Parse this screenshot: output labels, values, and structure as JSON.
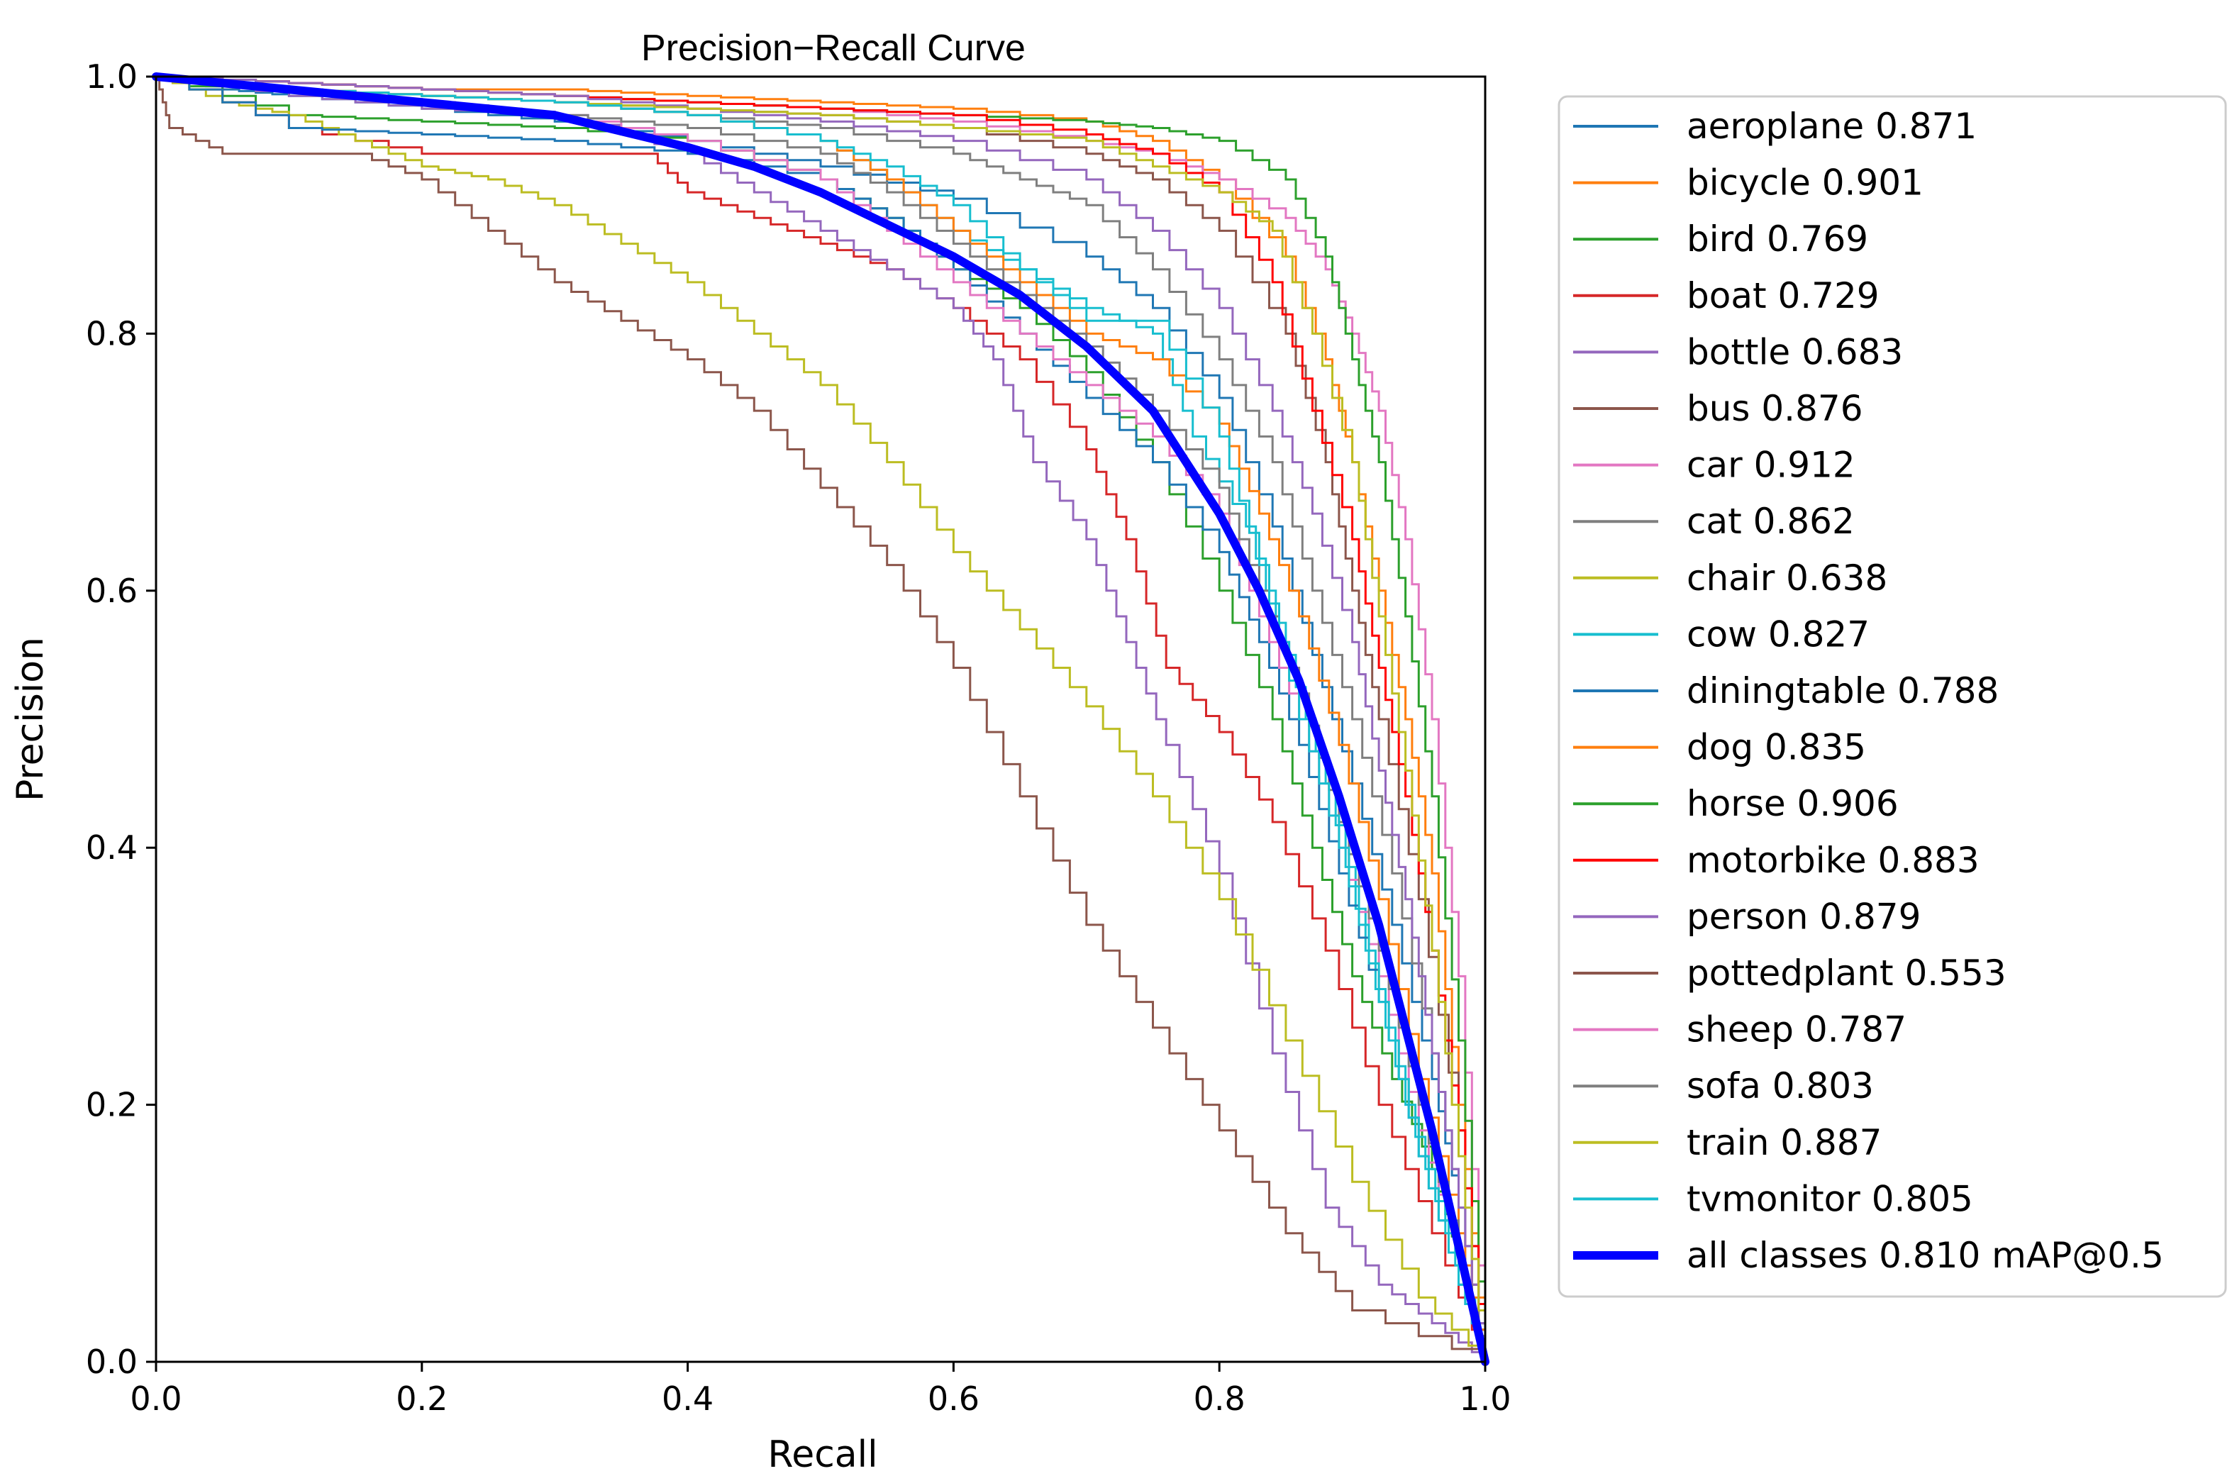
{
  "chart_data": {
    "type": "line",
    "title": "Precision−Recall Curve",
    "xlabel": "Recall",
    "ylabel": "Precision",
    "xlim": [
      0,
      1
    ],
    "ylim": [
      0,
      1
    ],
    "xticks": [
      "0.0",
      "0.2",
      "0.4",
      "0.6",
      "0.8",
      "1.0"
    ],
    "yticks": [
      "0.0",
      "0.2",
      "0.4",
      "0.6",
      "0.8",
      "1.0"
    ],
    "grid": false,
    "legend_position": "outside-right",
    "series": [
      {
        "name": "aeroplane",
        "legend": "aeroplane 0.871",
        "color": "#1f77b4",
        "x": [
          0,
          0.05,
          0.1,
          0.2,
          0.3,
          0.4,
          0.5,
          0.6,
          0.7,
          0.75,
          0.8,
          0.84,
          0.87,
          0.9,
          0.93,
          0.96,
          0.98,
          1.0
        ],
        "y": [
          1,
          0.99,
          0.985,
          0.975,
          0.965,
          0.95,
          0.93,
          0.905,
          0.86,
          0.82,
          0.75,
          0.65,
          0.55,
          0.45,
          0.34,
          0.22,
          0.12,
          0
        ]
      },
      {
        "name": "bicycle",
        "legend": "bicycle 0.901",
        "color": "#ff7f0e",
        "x": [
          0,
          0.1,
          0.2,
          0.3,
          0.4,
          0.5,
          0.6,
          0.7,
          0.75,
          0.8,
          0.85,
          0.88,
          0.9,
          0.92,
          0.94,
          0.96,
          0.98,
          1.0
        ],
        "y": [
          1,
          0.995,
          0.99,
          0.99,
          0.985,
          0.98,
          0.975,
          0.965,
          0.95,
          0.92,
          0.86,
          0.78,
          0.7,
          0.6,
          0.5,
          0.38,
          0.2,
          0
        ]
      },
      {
        "name": "bird",
        "legend": "bird 0.769",
        "color": "#2ca02c",
        "x": [
          0,
          0.1,
          0.2,
          0.3,
          0.4,
          0.5,
          0.55,
          0.6,
          0.65,
          0.7,
          0.75,
          0.8,
          0.84,
          0.87,
          0.9,
          0.93,
          0.96,
          0.98,
          1.0
        ],
        "y": [
          1,
          0.97,
          0.965,
          0.96,
          0.95,
          0.92,
          0.89,
          0.85,
          0.82,
          0.77,
          0.7,
          0.6,
          0.5,
          0.4,
          0.3,
          0.22,
          0.15,
          0.08,
          0
        ]
      },
      {
        "name": "boat",
        "legend": "boat 0.729",
        "color": "#d62728",
        "x": [
          0,
          0.1,
          0.2,
          0.3,
          0.37,
          0.4,
          0.45,
          0.5,
          0.55,
          0.6,
          0.65,
          0.7,
          0.73,
          0.76,
          0.8,
          0.84,
          0.88,
          0.92,
          0.96,
          1.0
        ],
        "y": [
          1,
          0.96,
          0.94,
          0.94,
          0.94,
          0.91,
          0.89,
          0.87,
          0.85,
          0.82,
          0.78,
          0.71,
          0.64,
          0.54,
          0.49,
          0.42,
          0.32,
          0.2,
          0.1,
          0
        ]
      },
      {
        "name": "bottle",
        "legend": "bottle 0.683",
        "color": "#9467bd",
        "x": [
          0,
          0.1,
          0.2,
          0.3,
          0.4,
          0.45,
          0.5,
          0.55,
          0.6,
          0.63,
          0.66,
          0.7,
          0.73,
          0.76,
          0.8,
          0.84,
          0.88,
          0.92,
          0.96,
          1.0
        ],
        "y": [
          1,
          0.985,
          0.975,
          0.97,
          0.94,
          0.91,
          0.88,
          0.85,
          0.82,
          0.78,
          0.7,
          0.64,
          0.56,
          0.48,
          0.38,
          0.24,
          0.12,
          0.06,
          0.03,
          0
        ]
      },
      {
        "name": "bus",
        "legend": "bus 0.876",
        "color": "#8c564b",
        "x": [
          0,
          0.1,
          0.2,
          0.3,
          0.4,
          0.5,
          0.6,
          0.7,
          0.75,
          0.8,
          0.85,
          0.88,
          0.9,
          0.92,
          0.95,
          0.98,
          1.0
        ],
        "y": [
          1,
          0.99,
          0.985,
          0.98,
          0.975,
          0.97,
          0.96,
          0.94,
          0.92,
          0.88,
          0.8,
          0.7,
          0.6,
          0.5,
          0.36,
          0.18,
          0
        ]
      },
      {
        "name": "car",
        "legend": "car 0.912",
        "color": "#e377c2",
        "x": [
          0,
          0.1,
          0.2,
          0.3,
          0.4,
          0.5,
          0.6,
          0.7,
          0.75,
          0.8,
          0.85,
          0.88,
          0.9,
          0.92,
          0.94,
          0.96,
          0.98,
          1.0
        ],
        "y": [
          1,
          0.995,
          0.99,
          0.985,
          0.98,
          0.975,
          0.965,
          0.95,
          0.94,
          0.92,
          0.89,
          0.85,
          0.8,
          0.74,
          0.64,
          0.5,
          0.3,
          0
        ]
      },
      {
        "name": "cat",
        "legend": "cat 0.862",
        "color": "#7f7f7f",
        "x": [
          0,
          0.1,
          0.2,
          0.3,
          0.4,
          0.5,
          0.6,
          0.65,
          0.7,
          0.75,
          0.8,
          0.84,
          0.87,
          0.9,
          0.93,
          0.96,
          0.98,
          1.0
        ],
        "y": [
          1,
          0.99,
          0.985,
          0.98,
          0.97,
          0.96,
          0.94,
          0.92,
          0.9,
          0.85,
          0.78,
          0.7,
          0.6,
          0.5,
          0.38,
          0.24,
          0.12,
          0
        ]
      },
      {
        "name": "chair",
        "legend": "chair 0.638",
        "color": "#bcbd22",
        "x": [
          0,
          0.05,
          0.1,
          0.15,
          0.2,
          0.25,
          0.3,
          0.35,
          0.4,
          0.45,
          0.5,
          0.55,
          0.6,
          0.65,
          0.7,
          0.75,
          0.8,
          0.85,
          0.9,
          0.95,
          1.0
        ],
        "y": [
          1,
          0.98,
          0.97,
          0.95,
          0.93,
          0.92,
          0.9,
          0.87,
          0.84,
          0.8,
          0.76,
          0.7,
          0.63,
          0.57,
          0.51,
          0.44,
          0.36,
          0.25,
          0.14,
          0.05,
          0
        ]
      },
      {
        "name": "cow",
        "legend": "cow 0.827",
        "color": "#17becf",
        "x": [
          0,
          0.1,
          0.2,
          0.3,
          0.4,
          0.5,
          0.55,
          0.6,
          0.65,
          0.7,
          0.75,
          0.78,
          0.82,
          0.85,
          0.88,
          0.91,
          0.94,
          0.97,
          1.0
        ],
        "y": [
          1,
          0.99,
          0.985,
          0.98,
          0.97,
          0.95,
          0.92,
          0.88,
          0.85,
          0.82,
          0.8,
          0.72,
          0.65,
          0.55,
          0.45,
          0.32,
          0.2,
          0.1,
          0
        ]
      },
      {
        "name": "diningtable",
        "legend": "diningtable 0.788",
        "color": "#1f77b4",
        "x": [
          0,
          0.1,
          0.2,
          0.3,
          0.4,
          0.5,
          0.55,
          0.6,
          0.65,
          0.7,
          0.75,
          0.8,
          0.83,
          0.86,
          0.89,
          0.92,
          0.95,
          0.98,
          1.0
        ],
        "y": [
          1,
          0.96,
          0.955,
          0.95,
          0.94,
          0.92,
          0.89,
          0.85,
          0.8,
          0.75,
          0.7,
          0.63,
          0.56,
          0.48,
          0.38,
          0.28,
          0.16,
          0.06,
          0
        ]
      },
      {
        "name": "dog",
        "legend": "dog 0.835",
        "color": "#ff7f0e",
        "x": [
          0,
          0.1,
          0.2,
          0.3,
          0.4,
          0.5,
          0.55,
          0.6,
          0.65,
          0.7,
          0.75,
          0.8,
          0.83,
          0.86,
          0.89,
          0.92,
          0.95,
          0.98,
          1.0
        ],
        "y": [
          1,
          0.99,
          0.985,
          0.98,
          0.97,
          0.95,
          0.92,
          0.88,
          0.84,
          0.8,
          0.78,
          0.73,
          0.66,
          0.58,
          0.48,
          0.36,
          0.22,
          0.1,
          0
        ]
      },
      {
        "name": "horse",
        "legend": "horse 0.906",
        "color": "#2ca02c",
        "x": [
          0,
          0.1,
          0.2,
          0.3,
          0.4,
          0.5,
          0.6,
          0.7,
          0.75,
          0.8,
          0.85,
          0.88,
          0.9,
          0.92,
          0.94,
          0.96,
          0.98,
          1.0
        ],
        "y": [
          1,
          0.995,
          0.99,
          0.985,
          0.98,
          0.975,
          0.97,
          0.965,
          0.96,
          0.95,
          0.92,
          0.86,
          0.78,
          0.7,
          0.58,
          0.44,
          0.25,
          0
        ]
      },
      {
        "name": "motorbike",
        "legend": "motorbike 0.883",
        "color": "#ff0000",
        "x": [
          0,
          0.1,
          0.2,
          0.3,
          0.4,
          0.5,
          0.6,
          0.7,
          0.75,
          0.8,
          0.84,
          0.87,
          0.9,
          0.92,
          0.94,
          0.96,
          0.98,
          1.0
        ],
        "y": [
          1,
          0.995,
          0.99,
          0.985,
          0.98,
          0.975,
          0.97,
          0.955,
          0.94,
          0.91,
          0.84,
          0.74,
          0.64,
          0.54,
          0.44,
          0.32,
          0.18,
          0
        ]
      },
      {
        "name": "person",
        "legend": "person 0.879",
        "color": "#9467bd",
        "x": [
          0,
          0.1,
          0.2,
          0.3,
          0.4,
          0.5,
          0.6,
          0.7,
          0.75,
          0.8,
          0.84,
          0.87,
          0.9,
          0.92,
          0.94,
          0.96,
          0.98,
          1.0
        ],
        "y": [
          1,
          0.995,
          0.99,
          0.985,
          0.975,
          0.965,
          0.95,
          0.92,
          0.88,
          0.82,
          0.74,
          0.66,
          0.56,
          0.46,
          0.36,
          0.24,
          0.12,
          0
        ]
      },
      {
        "name": "pottedplant",
        "legend": "pottedplant 0.553",
        "color": "#8c564b",
        "x": [
          0,
          0.01,
          0.05,
          0.1,
          0.15,
          0.2,
          0.25,
          0.3,
          0.35,
          0.4,
          0.45,
          0.5,
          0.55,
          0.6,
          0.65,
          0.7,
          0.75,
          0.8,
          0.85,
          0.9,
          1.0
        ],
        "y": [
          1,
          0.96,
          0.94,
          0.94,
          0.94,
          0.92,
          0.88,
          0.84,
          0.81,
          0.78,
          0.74,
          0.68,
          0.62,
          0.54,
          0.44,
          0.34,
          0.26,
          0.18,
          0.1,
          0.04,
          0
        ]
      },
      {
        "name": "sheep",
        "legend": "sheep 0.787",
        "color": "#e377c2",
        "x": [
          0,
          0.1,
          0.2,
          0.3,
          0.4,
          0.5,
          0.55,
          0.6,
          0.65,
          0.7,
          0.75,
          0.8,
          0.83,
          0.86,
          0.89,
          0.92,
          0.95,
          0.98,
          1.0
        ],
        "y": [
          1,
          0.99,
          0.98,
          0.97,
          0.95,
          0.92,
          0.88,
          0.84,
          0.8,
          0.76,
          0.72,
          0.66,
          0.58,
          0.5,
          0.4,
          0.3,
          0.18,
          0.08,
          0
        ]
      },
      {
        "name": "sofa",
        "legend": "sofa 0.803",
        "color": "#7f7f7f",
        "x": [
          0,
          0.1,
          0.2,
          0.3,
          0.4,
          0.5,
          0.55,
          0.6,
          0.65,
          0.7,
          0.75,
          0.8,
          0.83,
          0.86,
          0.89,
          0.92,
          0.95,
          0.98,
          1.0
        ],
        "y": [
          1,
          0.99,
          0.98,
          0.97,
          0.96,
          0.94,
          0.91,
          0.87,
          0.83,
          0.79,
          0.74,
          0.68,
          0.6,
          0.52,
          0.42,
          0.32,
          0.2,
          0.08,
          0
        ]
      },
      {
        "name": "train",
        "legend": "train 0.887",
        "color": "#bcbd22",
        "x": [
          0,
          0.1,
          0.2,
          0.3,
          0.4,
          0.5,
          0.6,
          0.7,
          0.75,
          0.8,
          0.84,
          0.87,
          0.9,
          0.92,
          0.94,
          0.96,
          0.98,
          1.0
        ],
        "y": [
          1,
          0.99,
          0.985,
          0.98,
          0.975,
          0.97,
          0.96,
          0.95,
          0.93,
          0.91,
          0.88,
          0.8,
          0.7,
          0.58,
          0.46,
          0.32,
          0.16,
          0
        ]
      },
      {
        "name": "tvmonitor",
        "legend": "tvmonitor 0.805",
        "color": "#17becf",
        "x": [
          0,
          0.1,
          0.2,
          0.3,
          0.4,
          0.5,
          0.55,
          0.6,
          0.65,
          0.7,
          0.75,
          0.8,
          0.83,
          0.86,
          0.89,
          0.92,
          0.95,
          0.98,
          1.0
        ],
        "y": [
          1,
          0.99,
          0.985,
          0.98,
          0.97,
          0.95,
          0.93,
          0.9,
          0.85,
          0.81,
          0.81,
          0.72,
          0.62,
          0.5,
          0.4,
          0.28,
          0.16,
          0.06,
          0
        ]
      },
      {
        "name": "all classes",
        "legend": "all classes 0.810 mAP@0.5",
        "color": "#0000ff",
        "bold": true,
        "x": [
          0,
          0.05,
          0.1,
          0.2,
          0.3,
          0.4,
          0.45,
          0.5,
          0.55,
          0.6,
          0.65,
          0.7,
          0.75,
          0.8,
          0.83,
          0.86,
          0.89,
          0.92,
          0.94,
          0.96,
          0.98,
          1.0
        ],
        "y": [
          1,
          0.995,
          0.99,
          0.98,
          0.97,
          0.945,
          0.93,
          0.91,
          0.885,
          0.86,
          0.83,
          0.79,
          0.74,
          0.66,
          0.6,
          0.53,
          0.44,
          0.34,
          0.26,
          0.18,
          0.09,
          0
        ]
      }
    ]
  }
}
